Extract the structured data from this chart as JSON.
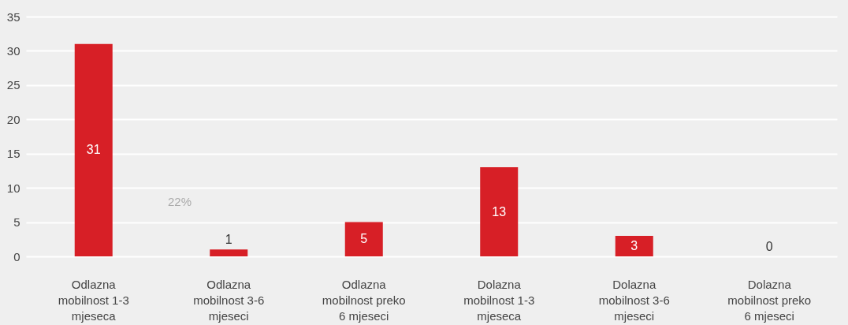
{
  "chart_data": {
    "type": "bar",
    "categories": [
      "Odlazna mobilnost 1-3 mjeseca",
      "Odlazna mobilnost 3-6 mjeseci",
      "Odlazna mobilnost preko 6 mjeseci",
      "Dolazna mobilnost 1-3 mjeseca",
      "Dolazna mobilnost 3-6 mjeseci",
      "Dolazna mobilnost preko 6 mjeseci"
    ],
    "values": [
      31,
      1,
      5,
      13,
      3,
      0
    ],
    "color": "#d71f26",
    "ylim": [
      0,
      35
    ],
    "yticks": [
      0,
      5,
      10,
      15,
      20,
      25,
      30,
      35
    ],
    "grid": "y",
    "data_labels": true,
    "annotations": [
      "22%"
    ]
  }
}
